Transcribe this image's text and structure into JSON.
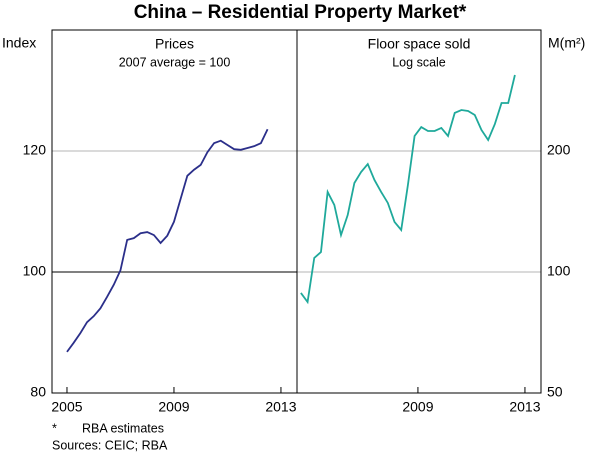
{
  "title": "China – Residential Property Market*",
  "footnote": {
    "marker": "*",
    "text": "RBA estimates"
  },
  "sources": "Sources: CEIC; RBA",
  "chart_data": [
    {
      "type": "line",
      "title": "Prices",
      "subtitle": "2007 average = 100",
      "ylabel": "Index",
      "yaxis_side": "left",
      "color": "#2b2f8a",
      "log_scale": false,
      "grid": true,
      "reference_line": 100,
      "xlim": [
        2004.44,
        2013.6
      ],
      "xticks": [
        2005,
        2009,
        2013
      ],
      "ylim": [
        80,
        140
      ],
      "yticks": [
        80,
        100,
        120
      ],
      "x": [
        2005,
        2005.25,
        2005.5,
        2005.75,
        2006,
        2006.25,
        2006.5,
        2006.75,
        2007,
        2007.25,
        2007.5,
        2007.75,
        2008,
        2008.25,
        2008.5,
        2008.75,
        2009,
        2009.25,
        2009.5,
        2009.75,
        2010,
        2010.25,
        2010.5,
        2010.75,
        2011,
        2011.25,
        2011.5,
        2011.75,
        2012,
        2012.25,
        2012.5
      ],
      "values": [
        86.8,
        88.3,
        89.9,
        91.7,
        92.7,
        94.0,
        95.9,
        97.9,
        100.3,
        105.3,
        105.6,
        106.4,
        106.6,
        106.1,
        104.8,
        106.0,
        108.3,
        112.1,
        115.9,
        116.9,
        117.7,
        119.8,
        121.3,
        121.7,
        121.0,
        120.3,
        120.2,
        120.5,
        120.8,
        121.3,
        123.6
      ]
    },
    {
      "type": "line",
      "title": "Floor space sold",
      "subtitle": "Log scale",
      "ylabel": "M(m²)",
      "yaxis_side": "right",
      "color": "#1fa99b",
      "log_scale": true,
      "grid": true,
      "xlim": [
        2004.48,
        2013.6
      ],
      "xticks": [
        2009,
        2013
      ],
      "ylim": [
        50,
        400
      ],
      "yticks": [
        50,
        100,
        200
      ],
      "x": [
        2004.625,
        2004.875,
        2005.125,
        2005.375,
        2005.625,
        2005.875,
        2006.125,
        2006.375,
        2006.625,
        2006.875,
        2007.125,
        2007.375,
        2007.625,
        2007.875,
        2008.125,
        2008.375,
        2008.625,
        2008.875,
        2009.125,
        2009.375,
        2009.625,
        2009.875,
        2010.125,
        2010.375,
        2010.625,
        2010.875,
        2011.125,
        2011.375,
        2011.625,
        2011.875,
        2012.125,
        2012.375,
        2012.625
      ],
      "values": [
        88.7,
        84.2,
        108.4,
        112.1,
        158.2,
        146.8,
        123.6,
        138.6,
        166.5,
        177.3,
        185.6,
        169.4,
        158.2,
        148.5,
        133.2,
        127.2,
        164.6,
        218.0,
        229.4,
        224.3,
        224.3,
        228.2,
        218.0,
        248.7,
        252.9,
        251.5,
        245.8,
        225.6,
        213.0,
        233.4,
        263.3,
        263.3,
        309.1
      ]
    }
  ]
}
